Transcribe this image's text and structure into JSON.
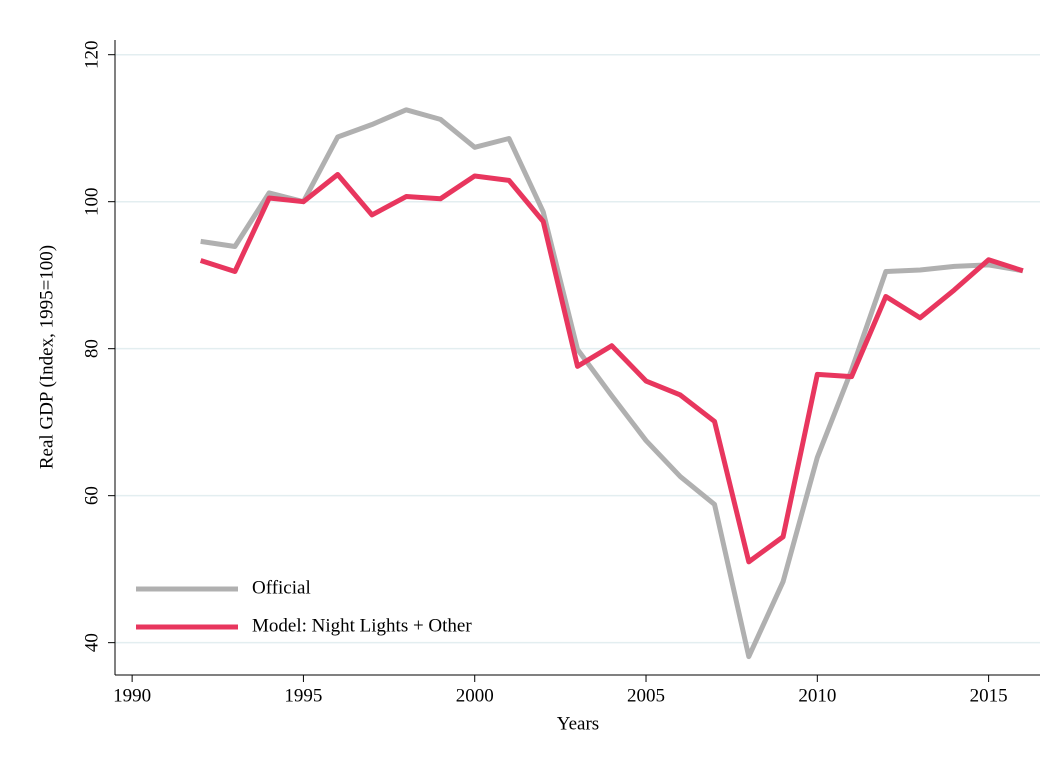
{
  "chart_data": {
    "type": "line",
    "x_label": "Years",
    "y_label": "Real GDP (Index, 1995=100)",
    "x": [
      1992,
      1993,
      1994,
      1995,
      1996,
      1997,
      1998,
      1999,
      2000,
      2001,
      2002,
      2003,
      2004,
      2005,
      2006,
      2007,
      2008,
      2009,
      2010,
      2011,
      2012,
      2013,
      2014,
      2015,
      2016
    ],
    "series": [
      {
        "name": "Official",
        "color": "#b0b0b0",
        "values": [
          94.6,
          93.9,
          101.2,
          100,
          108.8,
          110.5,
          112.5,
          111.2,
          107.4,
          108.6,
          98.6,
          79.9,
          73.6,
          67.5,
          62.6,
          58.8,
          38.1,
          48.3,
          65.2,
          77.1,
          90.5,
          90.7,
          91.2,
          91.4,
          90.6
        ]
      },
      {
        "name": "Model: Night Lights + Other",
        "color": "#e8365e",
        "values": [
          92.0,
          90.5,
          100.5,
          100,
          103.7,
          98.2,
          100.7,
          100.4,
          103.5,
          102.9,
          97.3,
          77.6,
          80.4,
          75.6,
          73.7,
          70.1,
          51.0,
          54.4,
          76.5,
          76.2,
          87.1,
          84.2,
          88.0,
          92.1,
          90.6
        ]
      }
    ],
    "xlim": [
      1989.5,
      2016.5
    ],
    "xticks": [
      1990,
      1995,
      2000,
      2005,
      2010,
      2015
    ],
    "ylim": [
      35.6,
      122
    ],
    "yticks": [
      40,
      60,
      80,
      100,
      120
    ],
    "grid": true,
    "legend": "lower left"
  }
}
